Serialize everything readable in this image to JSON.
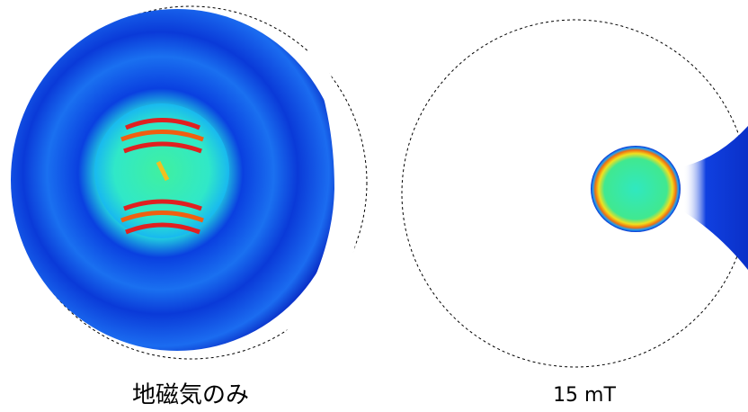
{
  "panels": [
    {
      "label": "地磁気のみ"
    },
    {
      "label": "15 mT"
    }
  ]
}
